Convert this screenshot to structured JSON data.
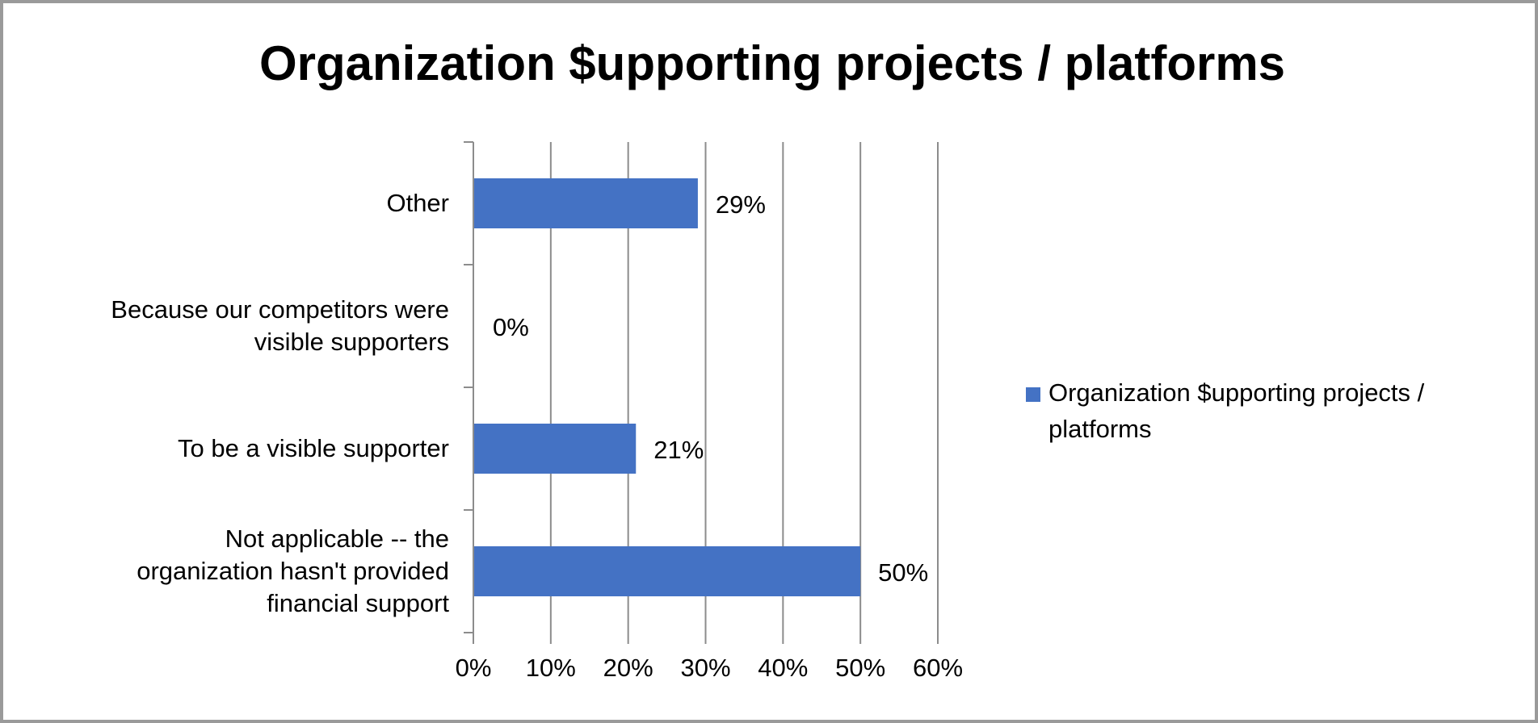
{
  "chart_data": {
    "type": "bar",
    "orientation": "horizontal",
    "title": "Organization $upporting projects / platforms",
    "categories": [
      "Other",
      "Because our competitors were visible supporters",
      "To be a visible supporter",
      "Not applicable -- the organization hasn't provided financial support"
    ],
    "category_lines": [
      [
        "Other"
      ],
      [
        "Because our competitors were",
        "visible supporters"
      ],
      [
        "To be a visible supporter"
      ],
      [
        "Not applicable -- the",
        "organization hasn't provided",
        "financial support"
      ]
    ],
    "series": [
      {
        "name": "Organization $upporting projects / platforms",
        "values": [
          29,
          0,
          21,
          50
        ],
        "labels": [
          "29%",
          "0%",
          "21%",
          "50%"
        ],
        "color": "#4472c4"
      }
    ],
    "xlim": [
      0,
      60
    ],
    "xticks": [
      0,
      10,
      20,
      30,
      40,
      50,
      60
    ],
    "xtick_labels": [
      "0%",
      "10%",
      "20%",
      "30%",
      "40%",
      "50%",
      "60%"
    ],
    "xlabel": "",
    "ylabel": "",
    "grid": "vertical",
    "legend_position": "right"
  }
}
